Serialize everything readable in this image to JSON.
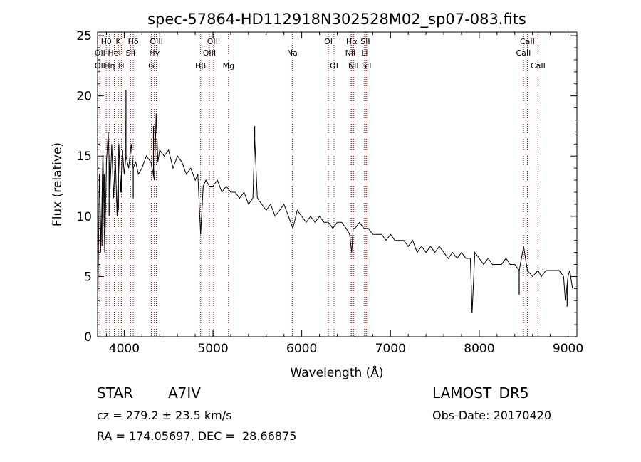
{
  "chart_data": {
    "type": "line",
    "title": "spec-57864-HD112918N302528M02_sp07-083.fits",
    "xlabel": "Wavelength (Å)",
    "ylabel": "Flux (relative)",
    "xlim": [
      3700,
      9100
    ],
    "ylim": [
      0,
      25.3
    ],
    "xticks": [
      4000,
      5000,
      6000,
      7000,
      8000,
      9000
    ],
    "yticks": [
      0,
      5,
      10,
      15,
      20,
      25
    ],
    "grid": false,
    "line_color": "#000000",
    "marker_color": "#8b0000",
    "spectrum": {
      "x": [
        3700,
        3720,
        3740,
        3760,
        3780,
        3800,
        3820,
        3840,
        3860,
        3880,
        3900,
        3920,
        3940,
        3960,
        3980,
        4000,
        4020,
        4050,
        4080,
        4100,
        4130,
        4160,
        4200,
        4250,
        4300,
        4340,
        4360,
        4380,
        4400,
        4450,
        4500,
        4550,
        4600,
        4650,
        4700,
        4750,
        4800,
        4830,
        4861,
        4890,
        4920,
        4960,
        5000,
        5050,
        5100,
        5150,
        5200,
        5250,
        5300,
        5350,
        5400,
        5450,
        5470,
        5500,
        5550,
        5600,
        5650,
        5700,
        5750,
        5800,
        5850,
        5900,
        5950,
        6000,
        6050,
        6100,
        6150,
        6200,
        6250,
        6300,
        6350,
        6400,
        6450,
        6500,
        6540,
        6563,
        6580,
        6600,
        6650,
        6700,
        6750,
        6800,
        6850,
        6900,
        6950,
        7000,
        7050,
        7100,
        7150,
        7200,
        7250,
        7300,
        7350,
        7400,
        7450,
        7500,
        7550,
        7600,
        7650,
        7700,
        7750,
        7800,
        7850,
        7900,
        7920,
        7950,
        8000,
        8050,
        8100,
        8150,
        8200,
        8250,
        8300,
        8350,
        8400,
        8450,
        8500,
        8542,
        8600,
        8662,
        8700,
        8750,
        8800,
        8850,
        8900,
        8950,
        8970,
        9000,
        9020,
        9050
      ],
      "y": [
        0.5,
        13.5,
        7.5,
        15.5,
        7,
        14.5,
        17,
        12,
        16,
        11.5,
        15,
        10,
        16,
        12,
        15.5,
        13.5,
        15,
        14,
        16,
        14,
        14.5,
        13.5,
        14,
        15,
        14.5,
        13,
        18.5,
        14.5,
        15.5,
        15,
        15.5,
        14,
        15,
        14.5,
        13.5,
        14,
        13,
        13.5,
        8.5,
        12.5,
        13,
        12.5,
        12.5,
        13,
        12,
        12.5,
        12,
        12,
        11.5,
        12,
        11,
        11.5,
        16.5,
        11.5,
        11,
        10.5,
        11,
        10,
        10.5,
        11,
        10,
        9,
        10.5,
        10,
        9.5,
        10,
        9.5,
        10,
        9.5,
        9.5,
        9,
        9.5,
        9.5,
        9,
        8.5,
        7,
        9,
        9,
        9.5,
        9,
        9,
        8.5,
        8.5,
        8.5,
        8,
        8.5,
        8,
        8,
        8,
        7.5,
        8,
        7,
        7.5,
        7,
        7.5,
        7,
        7.5,
        7,
        6.5,
        7,
        6.5,
        7,
        6.5,
        6.5,
        2,
        7,
        6.5,
        6,
        6.5,
        6,
        6,
        6,
        6.5,
        6,
        6,
        5.5,
        7.5,
        5.5,
        5,
        5.5,
        5,
        5.5,
        5.5,
        5.5,
        5.5,
        5,
        3,
        5,
        5.5,
        4
      ],
      "spikes": [
        {
          "x": 3735,
          "y": 7
        },
        {
          "x": 3755,
          "y": 7.5
        },
        {
          "x": 3775,
          "y": 13.5
        },
        {
          "x": 3830,
          "y": 10
        },
        {
          "x": 3935,
          "y": 10.5
        },
        {
          "x": 3968,
          "y": 12
        },
        {
          "x": 4010,
          "y": 18
        },
        {
          "x": 4020,
          "y": 20.5
        },
        {
          "x": 4102,
          "y": 11.5
        },
        {
          "x": 4330,
          "y": 17.5
        },
        {
          "x": 4860,
          "y": 8.5
        },
        {
          "x": 5470,
          "y": 17.5
        },
        {
          "x": 6563,
          "y": 7
        },
        {
          "x": 7910,
          "y": 2
        },
        {
          "x": 8450,
          "y": 3.5
        },
        {
          "x": 8990,
          "y": 2.5
        }
      ]
    },
    "lines": [
      {
        "label": "Hθ",
        "x": 3798,
        "row": 1
      },
      {
        "label": "OII",
        "x": 3727,
        "row": 2
      },
      {
        "label": "OII",
        "x": 3727,
        "row": 3
      },
      {
        "label": "Hη",
        "x": 3835,
        "row": 3
      },
      {
        "label": "K",
        "x": 3934,
        "row": 1
      },
      {
        "label": "HeI",
        "x": 3889,
        "row": 2
      },
      {
        "label": "H",
        "x": 3968,
        "row": 3
      },
      {
        "label": "Hδ",
        "x": 4102,
        "row": 1
      },
      {
        "label": "SII",
        "x": 4072,
        "row": 2
      },
      {
        "label": "OIII",
        "x": 4363,
        "row": 1
      },
      {
        "label": "Hγ",
        "x": 4340,
        "row": 2
      },
      {
        "label": "G",
        "x": 4305,
        "row": 3
      },
      {
        "label": "Hβ",
        "x": 4861,
        "row": 3
      },
      {
        "label": "OIII",
        "x": 5007,
        "row": 1
      },
      {
        "label": "OIII",
        "x": 4959,
        "row": 2
      },
      {
        "label": "Mg",
        "x": 5175,
        "row": 3
      },
      {
        "label": "Na",
        "x": 5893,
        "row": 2
      },
      {
        "label": "OI",
        "x": 6300,
        "row": 1
      },
      {
        "label": "OI",
        "x": 6364,
        "row": 3
      },
      {
        "label": "Hα",
        "x": 6563,
        "row": 1
      },
      {
        "label": "NII",
        "x": 6548,
        "row": 2
      },
      {
        "label": "NII",
        "x": 6583,
        "row": 3
      },
      {
        "label": "SII",
        "x": 6716,
        "row": 1
      },
      {
        "label": "Li",
        "x": 6708,
        "row": 2
      },
      {
        "label": "SII",
        "x": 6731,
        "row": 3
      },
      {
        "label": "CaII",
        "x": 8542,
        "row": 1
      },
      {
        "label": "CaII",
        "x": 8498,
        "row": 2
      },
      {
        "label": "CaII",
        "x": 8662,
        "row": 3
      }
    ]
  },
  "info": {
    "object_type": "STAR",
    "subclass": "A7IV",
    "survey": "LAMOST DR5",
    "cz": "cz = 279.2 ± 23.5 km/s",
    "obs_date": "Obs-Date: 20170420",
    "coords": "RA = 174.05697, DEC =  28.66875"
  }
}
